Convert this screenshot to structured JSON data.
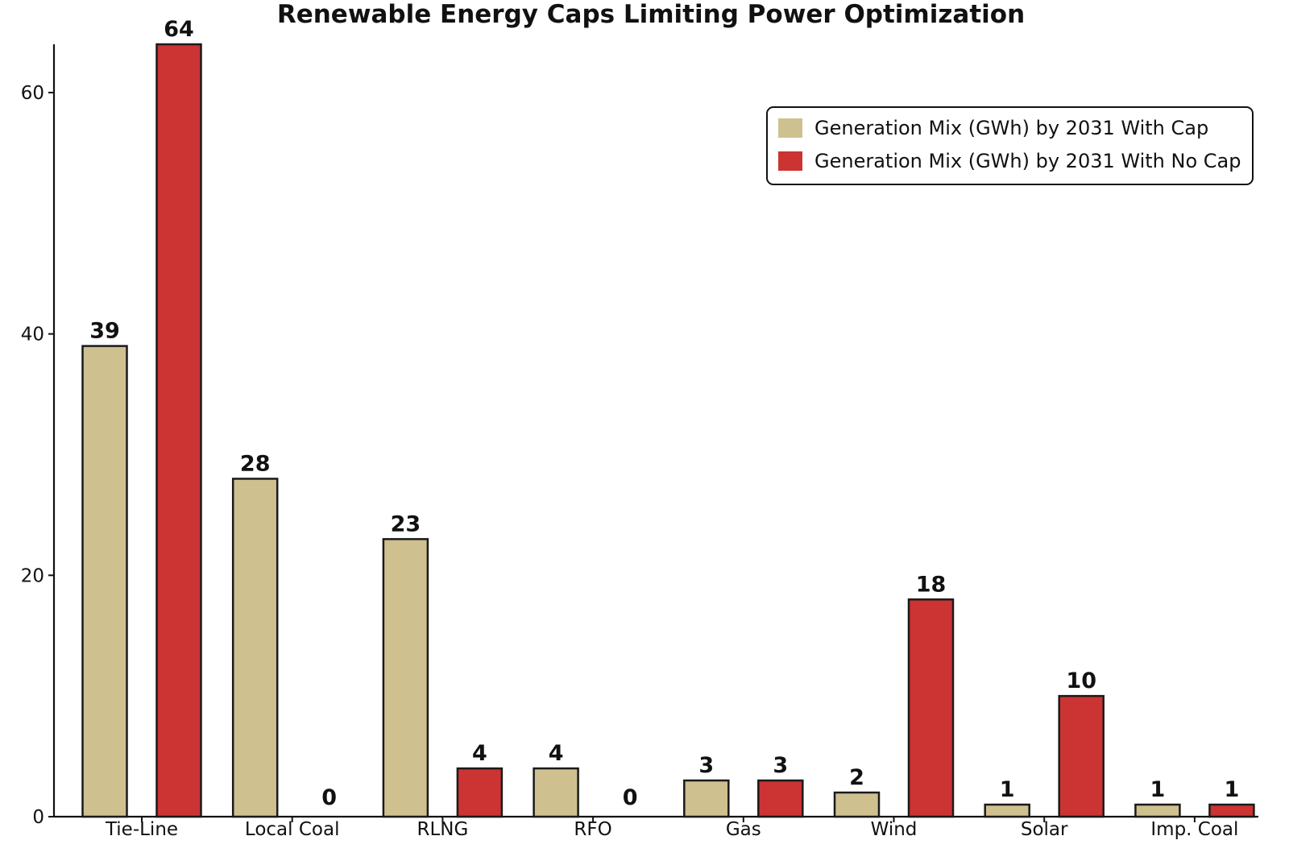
{
  "chart_data": {
    "type": "bar",
    "title": "Renewable Energy Caps Limiting Power Optimization",
    "xlabel": "",
    "ylabel": "",
    "categories": [
      "Tie-Line",
      "Local Coal",
      "RLNG",
      "RFO",
      "Gas",
      "Wind",
      "Solar",
      "Imp. Coal"
    ],
    "series": [
      {
        "name": "Generation Mix (GWh) by 2031 With Cap",
        "values": [
          39,
          28,
          23,
          4,
          3,
          2,
          1,
          1
        ],
        "color": "#cfc090"
      },
      {
        "name": "Generation Mix (GWh) by 2031 With No Cap",
        "values": [
          64,
          0,
          4,
          0,
          3,
          18,
          10,
          1
        ],
        "color": "#cc3333"
      }
    ],
    "ylim": [
      0,
      64
    ],
    "yticks": [
      0,
      20,
      40,
      60
    ],
    "grid": false,
    "legend_position": "top-right",
    "data_labels": true
  }
}
